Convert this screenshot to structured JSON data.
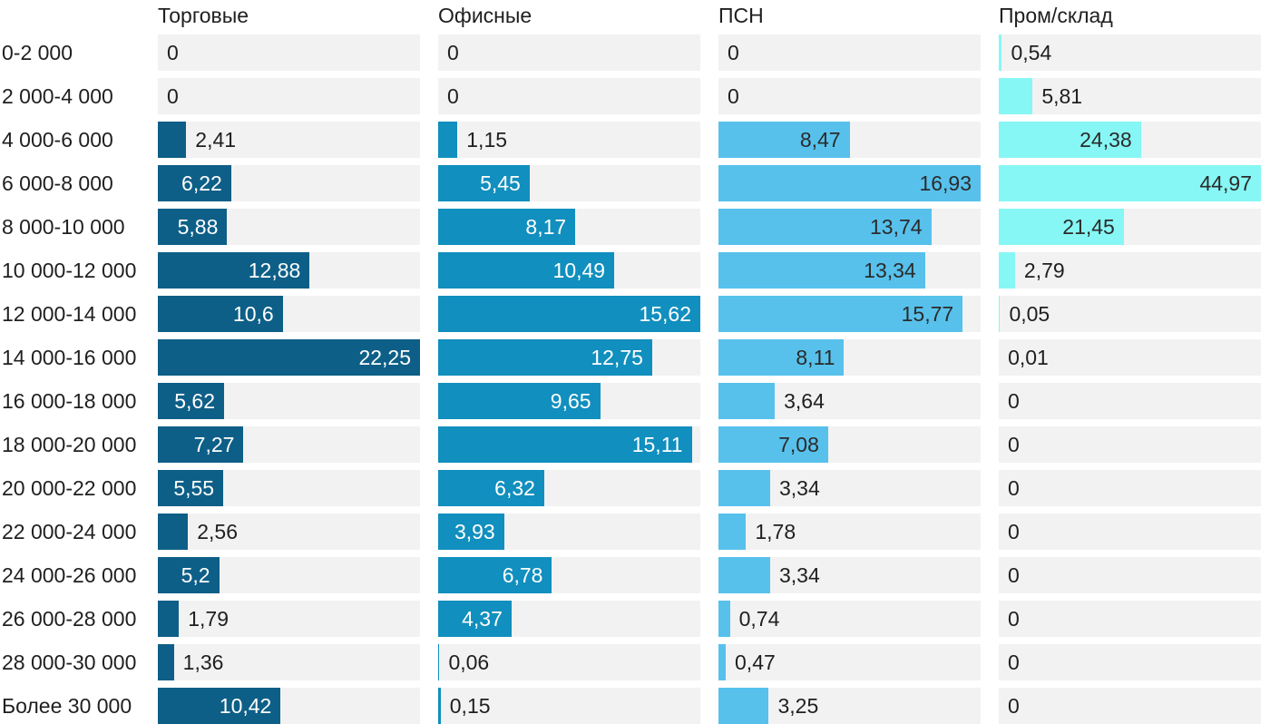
{
  "chart_data": {
    "type": "bar",
    "orientation": "horizontal",
    "normalization": "each column scaled to its own maximum value",
    "grid": false,
    "decimal_separator": ",",
    "categories": [
      "0-2 000",
      "2 000-4 000",
      "4 000-6 000",
      "6 000-8 000",
      "8 000-10 000",
      "10 000-12 000",
      "12 000-14 000",
      "14 000-16 000",
      "16 000-18 000",
      "18 000-20 000",
      "20 000-22 000",
      "22 000-24 000",
      "24 000-26 000",
      "26 000-28 000",
      "28 000-30 000",
      "Более 30 000"
    ],
    "series": [
      {
        "name": "Торговые",
        "color": "#0e5f87",
        "inside_label_color": "#ffffff",
        "values": [
          0,
          0,
          2.41,
          6.22,
          5.88,
          12.88,
          10.6,
          22.25,
          5.62,
          7.27,
          5.55,
          2.56,
          5.2,
          1.79,
          1.36,
          10.42
        ]
      },
      {
        "name": "Офисные",
        "color": "#118fbe",
        "inside_label_color": "#ffffff",
        "values": [
          0,
          0,
          1.15,
          5.45,
          8.17,
          10.49,
          15.62,
          12.75,
          9.65,
          15.11,
          6.32,
          3.93,
          6.78,
          4.37,
          0.06,
          0.15
        ]
      },
      {
        "name": "ПСН",
        "color": "#57c1ec",
        "inside_label_color": "#2b2b2b",
        "values": [
          0,
          0,
          8.47,
          16.93,
          13.74,
          13.34,
          15.77,
          8.11,
          3.64,
          7.08,
          3.34,
          1.78,
          3.34,
          0.74,
          0.47,
          3.25
        ]
      },
      {
        "name": "Пром/склад",
        "color": "#86f7f4",
        "inside_label_color": "#2b2b2b",
        "values": [
          0.54,
          5.81,
          24.38,
          44.97,
          21.45,
          2.79,
          0.05,
          0.01,
          0,
          0,
          0,
          0,
          0,
          0,
          0,
          0
        ]
      }
    ],
    "colors": {
      "track_background": "#f2f2f2",
      "text": "#1f1f1f",
      "page_background": "#ffffff"
    }
  }
}
